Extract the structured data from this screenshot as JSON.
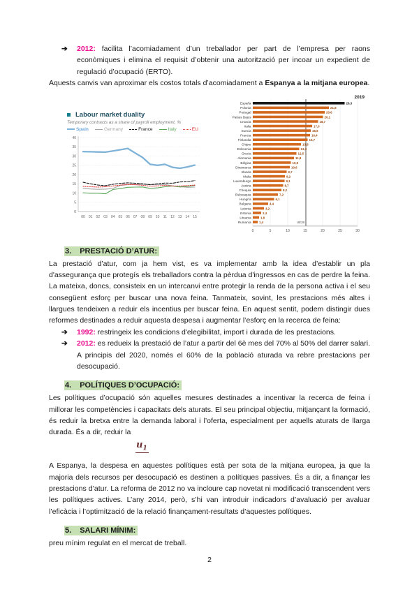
{
  "colors": {
    "year_highlight": "#ED0C8F",
    "heading_highlight": "#C6E0B4",
    "bar_orange": "#D2691E",
    "bar_spain_black": "#1a1a1a",
    "spain_line_blue": "#7FB3D8",
    "formula_maroon": "#6d3030"
  },
  "intro_bullet": {
    "arrow": "➔",
    "year": "2012:",
    "text": "facilita l’acomiadament d’un treballador per part de l’empresa per raons econòmiques i elimina el requisit d’obtenir una autorització per incoar un expedient de regulació d’ocupació (ERTO)."
  },
  "transition": {
    "pre": "Aquests canvis van aproximar els costos totals d’acomiadament a ",
    "bold": "Espanya a la mitjana europea",
    "post": "."
  },
  "chart_data": [
    {
      "type": "line",
      "title": "Labour market duality",
      "subtitle": "Temporary contracts as a share of payroll employment, %",
      "legend_position": "top",
      "grid": true,
      "x": [
        "00",
        "01",
        "02",
        "03",
        "04",
        "05",
        "06",
        "07",
        "08",
        "09",
        "10",
        "11",
        "12",
        "13",
        "14",
        "15"
      ],
      "ylim": [
        0,
        40
      ],
      "yticks": [
        0,
        5,
        10,
        15,
        20,
        25,
        30,
        35,
        40
      ],
      "series": [
        {
          "name": "Spain",
          "color": "#7FB3D8",
          "style": "solid",
          "width": 2.3,
          "values": [
            32.4,
            32.3,
            32.2,
            32.1,
            32.7,
            33.4,
            34.1,
            31.6,
            29.2,
            25.5,
            25.0,
            25.5,
            23.9,
            23.4,
            24.1,
            25.1
          ]
        },
        {
          "name": "Germany",
          "color": "#A6A6A6",
          "style": "solid",
          "width": 1.1,
          "values": [
            12.6,
            12.2,
            12.0,
            12.1,
            12.5,
            14.1,
            14.5,
            14.6,
            14.7,
            14.5,
            14.6,
            14.6,
            13.9,
            13.4,
            13.1,
            13.2
          ]
        },
        {
          "name": "France",
          "color": "#1a1a1a",
          "style": "dashed",
          "width": 1.1,
          "values": [
            15.8,
            15.0,
            14.3,
            14.0,
            14.7,
            15.2,
            15.5,
            15.3,
            15.0,
            14.5,
            15.0,
            15.4,
            15.3,
            16.0,
            16.1,
            16.7
          ]
        },
        {
          "name": "Italy",
          "color": "#5BA85B",
          "style": "solid",
          "width": 1.1,
          "values": [
            10.1,
            9.9,
            9.9,
            9.6,
            11.9,
            12.4,
            13.1,
            13.2,
            13.3,
            12.5,
            12.8,
            13.4,
            13.8,
            13.3,
            13.6,
            14.1
          ]
        },
        {
          "name": "EU",
          "color": "#E03131",
          "style": "dotted",
          "width": 1.1,
          "values": [
            13.6,
            13.4,
            13.2,
            13.4,
            13.8,
            14.3,
            14.6,
            14.5,
            14.2,
            13.7,
            13.9,
            14.1,
            13.8,
            13.8,
            14.0,
            14.3
          ]
        }
      ]
    },
    {
      "type": "bar",
      "orientation": "horizontal",
      "year_label": "2019",
      "xlim": [
        0,
        30
      ],
      "xticks": [
        0,
        5,
        10,
        15,
        20,
        25,
        30
      ],
      "reference_line": {
        "value": 15.2,
        "label": "UE28"
      },
      "highlight_category": "España",
      "bar_color": "#D2691E",
      "highlight_color": "#1a1a1a",
      "categories": [
        "España",
        "Polonia",
        "Portugal",
        "Países Bajos",
        "Croacia",
        "Italia",
        "Suecia",
        "Francia",
        "Finlandia",
        "Chipre",
        "Eslovenia",
        "Grecia",
        "Alemania",
        "Bélgica",
        "Dinamarca",
        "Irlanda",
        "Malta",
        "Luxemburgo",
        "Austria",
        "Chequia",
        "Eslovaquia",
        "Hungría",
        "Bulgaria",
        "Letonia",
        "Estonia",
        "Lituania",
        "Rumanía"
      ],
      "values": [
        26.3,
        21.8,
        20.6,
        20.1,
        18.7,
        17.0,
        16.6,
        16.4,
        15.7,
        13.8,
        13.3,
        12.5,
        11.8,
        10.9,
        10.6,
        9.7,
        9.2,
        9.1,
        8.7,
        8.2,
        7.2,
        6.1,
        4.4,
        3.2,
        2.4,
        1.8,
        1.4
      ]
    }
  ],
  "section3": {
    "number": "3.",
    "title": "PRESTACIÓ D’ATUR:",
    "body": "La prestació d’atur, com ja hem vist, es va implementar amb la idea d’establir un pla d'assegurança que protegís els treballadors contra la pèrdua d'ingressos en cas de perdre la feina. La mateixa, doncs, consisteix en un intercanvi entre protegir la renda de la persona activa i el seu consegüent esforç per buscar una nova feina. Tanmateix, sovint, les prestacions més altes i llargues tendeixen a reduir els incentius per buscar feina. En aquest sentit, podem distingir dues reformes destinades a reduir aquesta despesa i augmentar l’esforç en la recerca de feina:",
    "bullets": [
      {
        "arrow": "➔",
        "year": "1992:",
        "text": "restringeix les condicions d'elegibilitat, import i durada de les prestacions."
      },
      {
        "arrow": "➔",
        "year": "2012:",
        "text": "es redueix la prestació de l’atur a partir del 6è mes del 70% al 50% del darrer salari. A principis del 2020, només el 60% de la població aturada va rebre prestacions per desocupació."
      }
    ]
  },
  "section4": {
    "number": "4.",
    "title": "POLÍTIQUES D’OCUPACIÓ:",
    "body": "Les polítiques d’ocupació són aquelles mesures destinades a incentivar la recerca de feina i millorar les competències i capacitats dels aturats. El seu principal objectiu, mitjançant la formació, és reduir la bretxa entre la demanda laboral i l’oferta, especialment per aquells aturats de llarga durada. És a dir, reduir la",
    "formula": {
      "symbol": "u",
      "subscript": "1"
    },
    "body2": "A Espanya, la despesa en aquestes polítiques està per sota de la mitjana europea, ja que la majoria dels recursos per desocupació es destinen a polítiques passives. És a dir, a finançar les prestacions d’atur. La reforma de 2012 no va incloure cap novetat ni modificació transcendent vers les polítiques actives. L’any 2014, però, s’hi van introduir indicadors d’avaluació per avaluar l’eficàcia i l’optimització de la relació finançament-resultats d’aquestes polítiques."
  },
  "section5": {
    "number": "5.",
    "title": "SALARI MÍNIM:",
    "body": "preu mínim regulat en el mercat de treball."
  },
  "page_number": "2"
}
